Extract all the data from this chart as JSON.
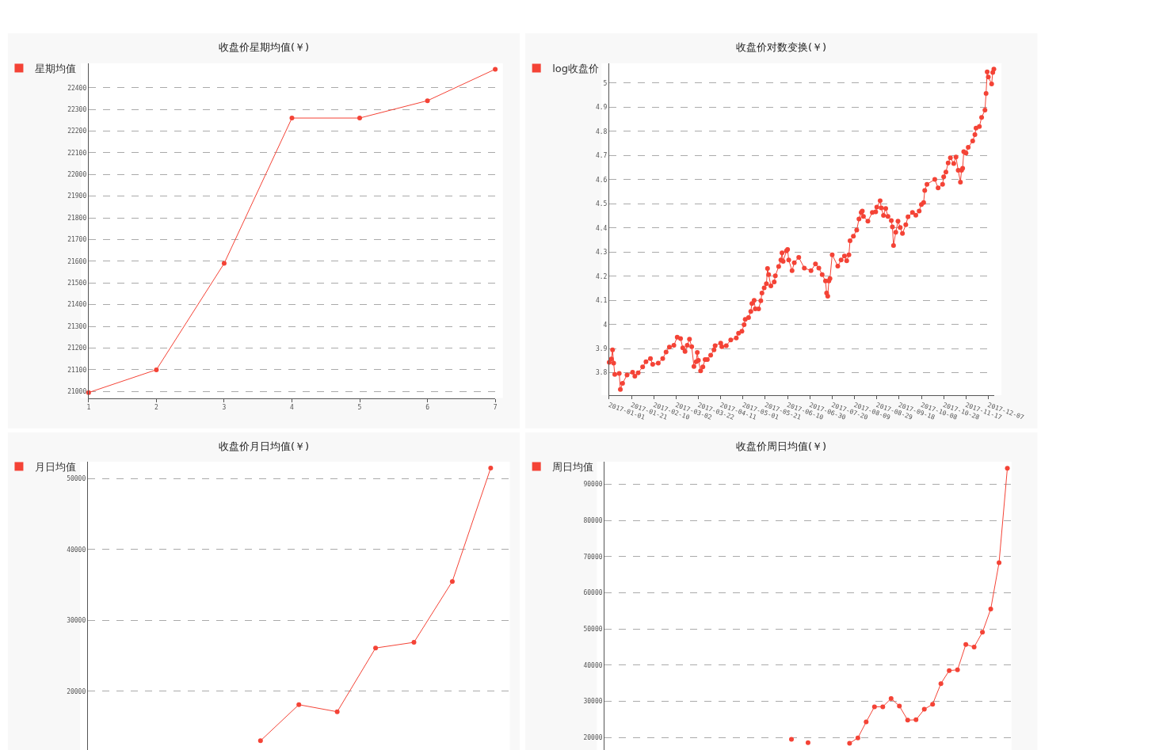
{
  "chart_data": [
    {
      "type": "line",
      "title": "收盘价星期均值(￥)",
      "categories": [
        "1",
        "2",
        "3",
        "4",
        "5",
        "6",
        "7"
      ],
      "series": [
        {
          "name": "星期均值",
          "color": "#f44336",
          "values": [
            20995,
            21100,
            21590,
            22260,
            22260,
            22340,
            22485
          ]
        }
      ],
      "ylim": [
        20970,
        22512
      ],
      "yticks": [
        21000,
        21100,
        21200,
        21300,
        21400,
        21500,
        21600,
        21700,
        21800,
        21900,
        22000,
        22100,
        22200,
        22300,
        22400
      ],
      "grid": "y",
      "legend": "top left",
      "marker": "circle",
      "line_style": "solid"
    },
    {
      "type": "line",
      "title": "收盘价对数变换(￥)",
      "x": [
        "2017-01-01",
        "2017-01-03",
        "2017-01-04",
        "2017-01-05",
        "2017-01-06",
        "2017-01-10",
        "2017-01-11",
        "2017-01-13",
        "2017-01-17",
        "2017-01-22",
        "2017-01-24",
        "2017-01-27",
        "2017-01-31",
        "2017-02-03",
        "2017-02-07",
        "2017-02-09",
        "2017-02-14",
        "2017-02-18",
        "2017-02-21",
        "2017-02-24",
        "2017-02-28",
        "2017-03-03",
        "2017-03-06",
        "2017-03-08",
        "2017-03-10",
        "2017-03-12",
        "2017-03-14",
        "2017-03-16",
        "2017-03-18",
        "2017-03-20",
        "2017-03-21",
        "2017-03-22",
        "2017-03-24",
        "2017-03-26",
        "2017-03-28",
        "2017-03-30",
        "2017-04-02",
        "2017-04-05",
        "2017-04-06",
        "2017-04-11",
        "2017-04-12",
        "2017-04-16",
        "2017-04-20",
        "2017-04-25",
        "2017-04-27",
        "2017-04-30",
        "2017-05-02",
        "2017-05-03",
        "2017-05-06",
        "2017-05-08",
        "2017-05-09",
        "2017-05-11",
        "2017-05-12",
        "2017-05-15",
        "2017-05-17",
        "2017-05-18",
        "2017-05-20",
        "2017-05-22",
        "2017-05-23",
        "2017-05-24",
        "2017-05-26",
        "2017-05-29",
        "2017-05-30",
        "2017-06-02",
        "2017-06-04",
        "2017-06-05",
        "2017-06-06",
        "2017-06-09",
        "2017-06-10",
        "2017-06-11",
        "2017-06-14",
        "2017-06-16",
        "2017-06-20",
        "2017-06-25",
        "2017-07-01",
        "2017-07-05",
        "2017-07-08",
        "2017-07-11",
        "2017-07-14",
        "2017-07-15",
        "2017-07-16",
        "2017-07-17",
        "2017-07-18",
        "2017-07-20",
        "2017-07-25",
        "2017-07-28",
        "2017-07-31",
        "2017-08-02",
        "2017-08-04",
        "2017-08-05",
        "2017-08-08",
        "2017-08-11",
        "2017-08-13",
        "2017-08-15",
        "2017-08-16",
        "2017-08-17",
        "2017-08-21",
        "2017-08-25",
        "2017-08-28",
        "2017-08-29",
        "2017-09-01",
        "2017-09-02",
        "2017-09-04",
        "2017-09-06",
        "2017-09-08",
        "2017-09-11",
        "2017-09-12",
        "2017-09-13",
        "2017-09-15",
        "2017-09-17",
        "2017-09-19",
        "2017-09-21",
        "2017-09-24",
        "2017-09-26",
        "2017-09-30",
        "2017-10-03",
        "2017-10-06",
        "2017-10-08",
        "2017-10-10",
        "2017-10-11",
        "2017-10-13",
        "2017-10-20",
        "2017-10-23",
        "2017-10-27",
        "2017-10-28",
        "2017-10-30",
        "2017-11-01",
        "2017-11-03",
        "2017-11-06",
        "2017-11-08",
        "2017-11-10",
        "2017-11-12",
        "2017-11-13",
        "2017-11-14",
        "2017-11-15",
        "2017-11-17",
        "2017-11-19",
        "2017-11-23",
        "2017-11-25",
        "2017-11-26",
        "2017-11-29",
        "2017-12-01",
        "2017-12-04",
        "2017-12-05",
        "2017-12-06",
        "2017-12-07",
        "2017-12-10",
        "2017-12-11",
        "2017-12-12"
      ],
      "series": [
        {
          "name": "log收盘价",
          "color": "#f44336",
          "values": [
            3.843,
            3.857,
            3.895,
            3.84,
            3.793,
            3.797,
            3.731,
            3.756,
            3.791,
            3.802,
            3.786,
            3.8,
            3.824,
            3.846,
            3.859,
            3.835,
            3.84,
            3.859,
            3.886,
            3.906,
            3.914,
            3.947,
            3.942,
            3.903,
            3.888,
            3.914,
            3.939,
            3.908,
            3.826,
            3.846,
            3.884,
            3.851,
            3.808,
            3.824,
            3.855,
            3.855,
            3.873,
            3.895,
            3.912,
            3.923,
            3.908,
            3.912,
            3.936,
            3.944,
            3.964,
            3.972,
            3.999,
            4.021,
            4.029,
            4.054,
            4.087,
            4.1,
            4.065,
            4.065,
            4.098,
            4.13,
            4.152,
            4.169,
            4.232,
            4.207,
            4.16,
            4.176,
            4.202,
            4.24,
            4.267,
            4.297,
            4.262,
            4.305,
            4.311,
            4.267,
            4.223,
            4.256,
            4.278,
            4.234,
            4.223,
            4.251,
            4.234,
            4.207,
            4.18,
            4.13,
            4.117,
            4.18,
            4.19,
            4.289,
            4.242,
            4.267,
            4.284,
            4.264,
            4.289,
            4.347,
            4.366,
            4.391,
            4.437,
            4.464,
            4.47,
            4.448,
            4.428,
            4.464,
            4.467,
            4.486,
            4.513,
            4.483,
            4.452,
            4.481,
            4.448,
            4.431,
            4.404,
            4.327,
            4.382,
            4.428,
            4.402,
            4.377,
            4.413,
            4.446,
            4.464,
            4.453,
            4.47,
            4.497,
            4.505,
            4.555,
            4.581,
            4.601,
            4.566,
            4.581,
            4.612,
            4.632,
            4.669,
            4.691,
            4.667,
            4.694,
            4.639,
            4.59,
            4.639,
            4.647,
            4.716,
            4.71,
            4.734,
            4.76,
            4.787,
            4.814,
            4.82,
            4.858,
            4.888,
            4.957,
            5.047,
            5.025,
            4.997,
            5.044,
            5.058
          ]
        }
      ],
      "xlim": [
        "2017-01-01",
        "2017-12-12"
      ],
      "xticks": [
        "2017-01-01",
        "2017-01-21",
        "2017-02-10",
        "2017-03-02",
        "2017-03-22",
        "2017-04-11",
        "2017-05-01",
        "2017-05-21",
        "2017-06-10",
        "2017-06-30",
        "2017-07-20",
        "2017-08-09",
        "2017-08-29",
        "2017-09-18",
        "2017-10-08",
        "2017-10-28",
        "2017-11-17",
        "2017-12-07"
      ],
      "ylim": [
        3.707,
        5.082
      ],
      "yticks": [
        3.8,
        3.9,
        4,
        4.1,
        4.2,
        4.3,
        4.4,
        4.5,
        4.6,
        4.7,
        4.8,
        4.9,
        5
      ],
      "grid": "y",
      "legend": "top left",
      "marker": "circle",
      "line_style": "solid"
    },
    {
      "type": "line",
      "title": "收盘价月日均值(￥)",
      "categories": [
        null,
        null,
        null,
        null,
        null,
        null,
        null,
        null,
        null,
        null,
        null
      ],
      "series": [
        {
          "name": "月日均值",
          "color": "#f44336",
          "values": [
            null,
            null,
            null,
            null,
            13000,
            18100,
            17100,
            26100,
            26900,
            35500,
            51500
          ]
        }
      ],
      "ylim": [
        11700,
        52400
      ],
      "yticks": [
        20000,
        30000,
        40000,
        50000
      ],
      "tick_labels": "y",
      "grid": "y",
      "legend": "top left",
      "marker": "circle",
      "line_style": "solid"
    },
    {
      "type": "line",
      "title": "收盘价周日均值(￥)",
      "categories": [
        null,
        null,
        null,
        null,
        null,
        null,
        null,
        null,
        null,
        null,
        null,
        null,
        null,
        null,
        null,
        null,
        null,
        null,
        null,
        null,
        null,
        null,
        null,
        null,
        null,
        null,
        null,
        null,
        null,
        null,
        null,
        null,
        null,
        null,
        null,
        null,
        null,
        null,
        null,
        null,
        null,
        null,
        null,
        null,
        null,
        null,
        null,
        null,
        null
      ],
      "series": [
        {
          "name": "周日均值",
          "color": "#f44336",
          "values": [
            null,
            null,
            null,
            null,
            null,
            null,
            null,
            null,
            null,
            null,
            null,
            null,
            null,
            null,
            null,
            null,
            null,
            null,
            null,
            null,
            null,
            null,
            19500,
            null,
            18600,
            null,
            null,
            null,
            null,
            18400,
            19900,
            24300,
            28500,
            28500,
            30800,
            28700,
            24800,
            24900,
            27800,
            29200,
            34900,
            38500,
            38700,
            45700,
            45000,
            49100,
            55500,
            68300,
            94400
          ]
        }
      ],
      "ylim": [
        16550,
        96200
      ],
      "yticks": [
        20000,
        30000,
        40000,
        50000,
        60000,
        70000,
        80000,
        90000
      ],
      "tick_labels": "y",
      "grid": "y",
      "legend": "top left",
      "marker": "circle",
      "line_style": "solid"
    }
  ]
}
